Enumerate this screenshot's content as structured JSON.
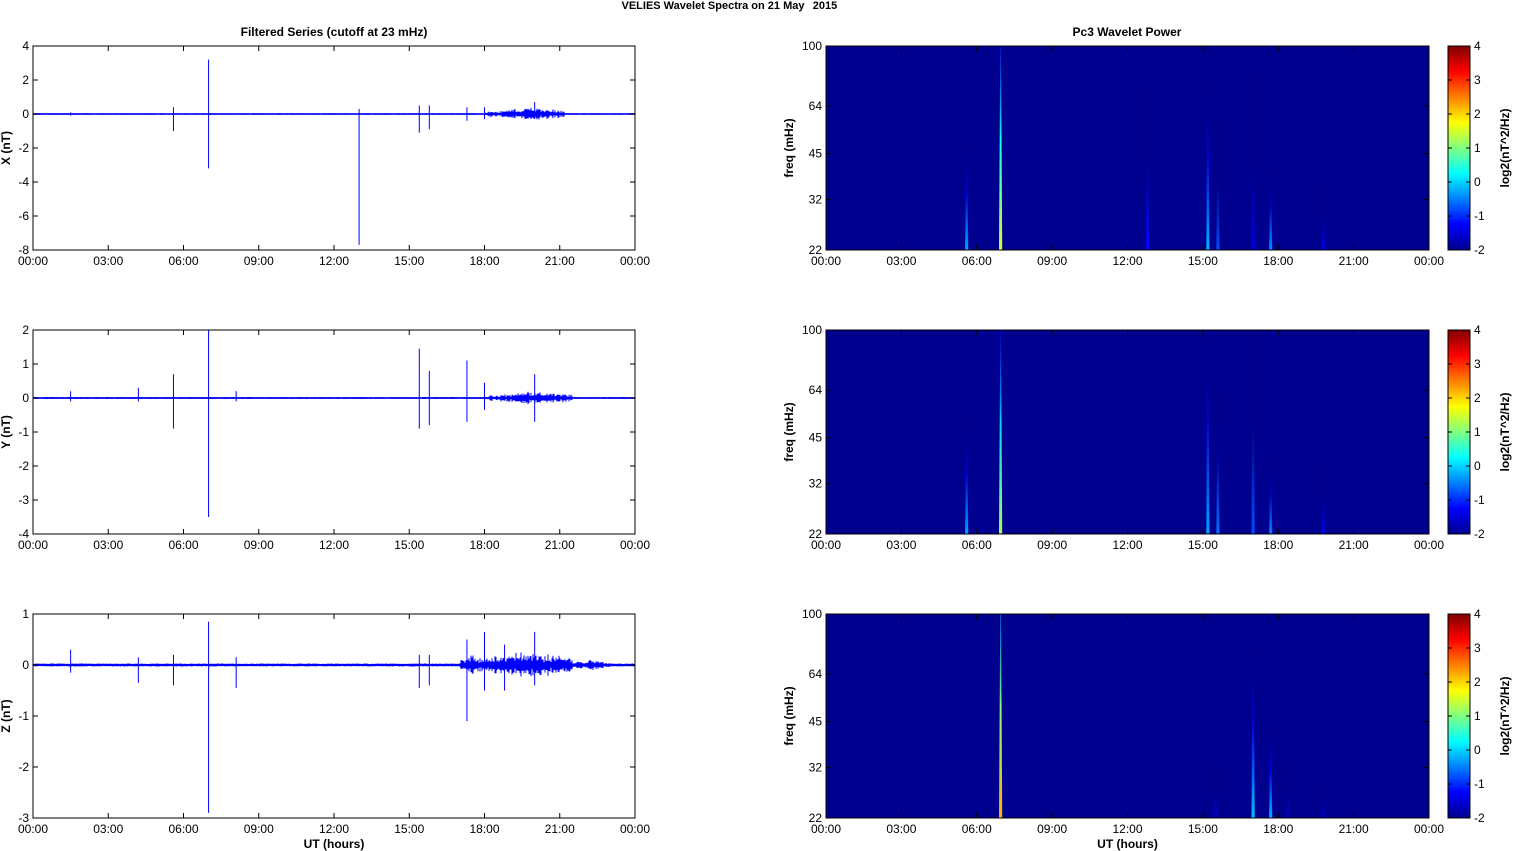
{
  "figure": {
    "suptitle_left": "VELIES Wavelet Spectra on 21 May",
    "suptitle_right": "2015",
    "left_title": "Filtered Series (cutoff at 23 mHz)",
    "right_title": "Pc3 Wavelet Power",
    "xlabel": "UT (hours)",
    "colors": {
      "trace": "#0000ff",
      "background_spectrum": "#00008f",
      "axis": "#000000"
    }
  },
  "chart_data": [
    {
      "type": "line",
      "id": "series-x",
      "ylabel": "X (nT)",
      "xlabel": "",
      "x_ticks": [
        "00:00",
        "03:00",
        "06:00",
        "09:00",
        "12:00",
        "15:00",
        "18:00",
        "21:00",
        "00:00"
      ],
      "xlim": [
        0,
        24
      ],
      "ylim": [
        -8,
        4
      ],
      "y_ticks": [
        4,
        2,
        0,
        -2,
        -4,
        -6,
        -8
      ],
      "noise_level": 0.05,
      "active_intervals": [
        {
          "start": 18.6,
          "end": 21.2,
          "amplitude": 0.3
        },
        {
          "start": 18.0,
          "end": 18.6,
          "amplitude": 0.15
        }
      ],
      "spikes": [
        {
          "t": 1.5,
          "max": 0.1,
          "min": -0.1
        },
        {
          "t": 5.6,
          "max": 0.4,
          "min": -1.0
        },
        {
          "t": 7.0,
          "max": 3.2,
          "min": -3.2
        },
        {
          "t": 13.0,
          "max": 0.3,
          "min": -7.7
        },
        {
          "t": 15.4,
          "max": 0.5,
          "min": -1.1
        },
        {
          "t": 15.8,
          "max": 0.5,
          "min": -0.9
        },
        {
          "t": 17.3,
          "max": 0.4,
          "min": -0.4
        },
        {
          "t": 18.0,
          "max": 0.4,
          "min": -0.3
        },
        {
          "t": 20.0,
          "max": 0.7,
          "min": -0.3
        }
      ]
    },
    {
      "type": "line",
      "id": "series-y",
      "ylabel": "Y (nT)",
      "xlabel": "",
      "x_ticks": [
        "00:00",
        "03:00",
        "06:00",
        "09:00",
        "12:00",
        "15:00",
        "18:00",
        "21:00",
        "00:00"
      ],
      "xlim": [
        0,
        24
      ],
      "ylim": [
        -4,
        2
      ],
      "y_ticks": [
        2,
        1,
        0,
        -1,
        -2,
        -3,
        -4
      ],
      "noise_level": 0.03,
      "active_intervals": [
        {
          "start": 18.6,
          "end": 21.5,
          "amplitude": 0.15
        },
        {
          "start": 18.0,
          "end": 18.6,
          "amplitude": 0.08
        }
      ],
      "spikes": [
        {
          "t": 1.5,
          "max": 0.2,
          "min": -0.1
        },
        {
          "t": 4.2,
          "max": 0.3,
          "min": -0.1
        },
        {
          "t": 5.6,
          "max": 0.7,
          "min": -0.9
        },
        {
          "t": 7.0,
          "max": 2.0,
          "min": -3.5
        },
        {
          "t": 8.1,
          "max": 0.2,
          "min": -0.1
        },
        {
          "t": 15.4,
          "max": 1.45,
          "min": -0.9
        },
        {
          "t": 15.8,
          "max": 0.8,
          "min": -0.8
        },
        {
          "t": 17.3,
          "max": 1.1,
          "min": -0.7
        },
        {
          "t": 18.0,
          "max": 0.45,
          "min": -0.35
        },
        {
          "t": 20.0,
          "max": 0.7,
          "min": -0.7
        }
      ]
    },
    {
      "type": "line",
      "id": "series-z",
      "ylabel": "Z (nT)",
      "xlabel": "UT (hours)",
      "x_ticks": [
        "00:00",
        "03:00",
        "06:00",
        "09:00",
        "12:00",
        "15:00",
        "18:00",
        "21:00",
        "00:00"
      ],
      "xlim": [
        0,
        24
      ],
      "ylim": [
        -3,
        1
      ],
      "y_ticks": [
        1,
        0,
        -1,
        -2,
        -3
      ],
      "noise_level": 0.03,
      "active_intervals": [
        {
          "start": 17.0,
          "end": 18.0,
          "amplitude": 0.15
        },
        {
          "start": 18.0,
          "end": 21.5,
          "amplitude": 0.2
        },
        {
          "start": 21.5,
          "end": 23.0,
          "amplitude": 0.08
        }
      ],
      "spikes": [
        {
          "t": 1.5,
          "max": 0.3,
          "min": -0.15
        },
        {
          "t": 4.2,
          "max": 0.15,
          "min": -0.35
        },
        {
          "t": 5.6,
          "max": 0.2,
          "min": -0.4
        },
        {
          "t": 7.0,
          "max": 0.85,
          "min": -2.9
        },
        {
          "t": 8.1,
          "max": 0.15,
          "min": -0.45
        },
        {
          "t": 15.4,
          "max": 0.2,
          "min": -0.45
        },
        {
          "t": 15.8,
          "max": 0.2,
          "min": -0.4
        },
        {
          "t": 17.3,
          "max": 0.5,
          "min": -1.1
        },
        {
          "t": 18.0,
          "max": 0.65,
          "min": -0.5
        },
        {
          "t": 18.8,
          "max": 0.4,
          "min": -0.5
        },
        {
          "t": 20.0,
          "max": 0.65,
          "min": -0.4
        }
      ]
    },
    {
      "type": "heatmap",
      "id": "wavelet-x",
      "ylabel": "freq (mHz)",
      "xlabel": "",
      "x_ticks": [
        "00:00",
        "03:00",
        "06:00",
        "09:00",
        "12:00",
        "15:00",
        "18:00",
        "21:00",
        "00:00"
      ],
      "xlim": [
        0,
        24
      ],
      "y_scale": "log",
      "ylim": [
        22,
        100
      ],
      "y_ticks": [
        100,
        64,
        45,
        32,
        22
      ],
      "colorbar_label": "log2(nT^2/Hz)",
      "clim": [
        -2,
        4
      ],
      "colorbar_ticks": [
        4,
        3,
        2,
        1,
        0,
        -1,
        -2
      ],
      "streaks": [
        {
          "t": 5.6,
          "f_top": 48,
          "power": -0.3
        },
        {
          "t": 6.95,
          "f_top": 100,
          "power": 1.5
        },
        {
          "t": 12.8,
          "f_top": 85,
          "power": -1.2
        },
        {
          "t": 15.2,
          "f_top": 75,
          "power": -0.2
        },
        {
          "t": 15.6,
          "f_top": 55,
          "power": -0.8
        },
        {
          "t": 17.0,
          "f_top": 80,
          "power": -1.4
        },
        {
          "t": 17.7,
          "f_top": 40,
          "power": -0.4
        },
        {
          "t": 19.8,
          "f_top": 38,
          "power": -1.4
        }
      ]
    },
    {
      "type": "heatmap",
      "id": "wavelet-y",
      "ylabel": "freq (mHz)",
      "xlabel": "",
      "x_ticks": [
        "00:00",
        "03:00",
        "06:00",
        "09:00",
        "12:00",
        "15:00",
        "18:00",
        "21:00",
        "00:00"
      ],
      "xlim": [
        0,
        24
      ],
      "y_scale": "log",
      "ylim": [
        22,
        100
      ],
      "y_ticks": [
        100,
        64,
        45,
        32,
        22
      ],
      "colorbar_label": "log2(nT^2/Hz)",
      "clim": [
        -2,
        4
      ],
      "colorbar_ticks": [
        4,
        3,
        2,
        1,
        0,
        -1,
        -2
      ],
      "streaks": [
        {
          "t": 5.6,
          "f_top": 50,
          "power": -0.3
        },
        {
          "t": 6.95,
          "f_top": 100,
          "power": 1.2
        },
        {
          "t": 15.2,
          "f_top": 100,
          "power": -0.3
        },
        {
          "t": 15.6,
          "f_top": 60,
          "power": -0.6
        },
        {
          "t": 17.0,
          "f_top": 100,
          "power": -0.8
        },
        {
          "t": 17.7,
          "f_top": 38,
          "power": -0.5
        },
        {
          "t": 19.8,
          "f_top": 40,
          "power": -1.4
        }
      ]
    },
    {
      "type": "heatmap",
      "id": "wavelet-z",
      "ylabel": "freq (mHz)",
      "xlabel": "UT (hours)",
      "x_ticks": [
        "00:00",
        "03:00",
        "06:00",
        "09:00",
        "12:00",
        "15:00",
        "18:00",
        "21:00",
        "00:00"
      ],
      "xlim": [
        0,
        24
      ],
      "y_scale": "log",
      "ylim": [
        22,
        100
      ],
      "y_ticks": [
        100,
        64,
        45,
        32,
        22
      ],
      "colorbar_label": "log2(nT^2/Hz)",
      "clim": [
        -2,
        4
      ],
      "colorbar_ticks": [
        4,
        3,
        2,
        1,
        0,
        -1,
        -2
      ],
      "streaks": [
        {
          "t": 6.95,
          "f_top": 100,
          "power": 2.2
        },
        {
          "t": 15.5,
          "f_top": 35,
          "power": -1.6
        },
        {
          "t": 17.0,
          "f_top": 75,
          "power": -0.1
        },
        {
          "t": 17.7,
          "f_top": 42,
          "power": -0.2
        },
        {
          "t": 18.4,
          "f_top": 32,
          "power": -1.5
        },
        {
          "t": 19.8,
          "f_top": 30,
          "power": -1.6
        }
      ]
    }
  ]
}
